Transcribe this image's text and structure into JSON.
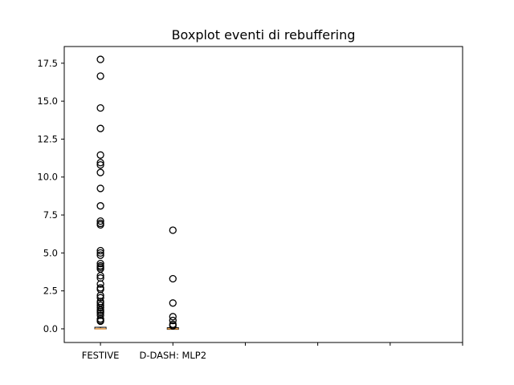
{
  "chart_data": {
    "type": "boxplot",
    "title": "Boxplot eventi di rebuffering",
    "xlabel": "",
    "ylabel": "",
    "ylim": [
      -0.9,
      18.6
    ],
    "yticks": [
      0.0,
      2.5,
      5.0,
      7.5,
      10.0,
      12.5,
      15.0,
      17.5
    ],
    "ytick_labels": [
      "0.0",
      "2.5",
      "5.0",
      "7.5",
      "10.0",
      "12.5",
      "15.0",
      "17.5"
    ],
    "categories": [
      "FESTIVE",
      "D-DASH: MLP2",
      "",
      "",
      "",
      ""
    ],
    "series": [
      {
        "category": "FESTIVE",
        "q1": 0.0,
        "median": 0.0,
        "q3": 0.05,
        "whisker_low": 0.0,
        "whisker_high": 0.1,
        "fliers": [
          17.75,
          16.65,
          14.55,
          13.2,
          11.45,
          10.95,
          10.8,
          10.3,
          9.25,
          8.1,
          7.1,
          6.95,
          6.85,
          5.15,
          5.0,
          4.85,
          4.3,
          4.15,
          4.05,
          3.95,
          3.5,
          3.35,
          2.95,
          2.7,
          2.6,
          2.2,
          2.05,
          1.8,
          1.7,
          1.55,
          1.4,
          1.25,
          1.15,
          1.05,
          0.9,
          0.65,
          0.55,
          0.5
        ]
      },
      {
        "category": "D-DASH: MLP2",
        "q1": 0.0,
        "median": 0.0,
        "q3": 0.02,
        "whisker_low": 0.0,
        "whisker_high": 0.05,
        "fliers": [
          6.5,
          3.3,
          1.7,
          0.8,
          0.55,
          0.3,
          0.2
        ]
      }
    ],
    "colors": {
      "median": "#e08a2c",
      "flier_edge": "#000000"
    },
    "grid": false
  }
}
